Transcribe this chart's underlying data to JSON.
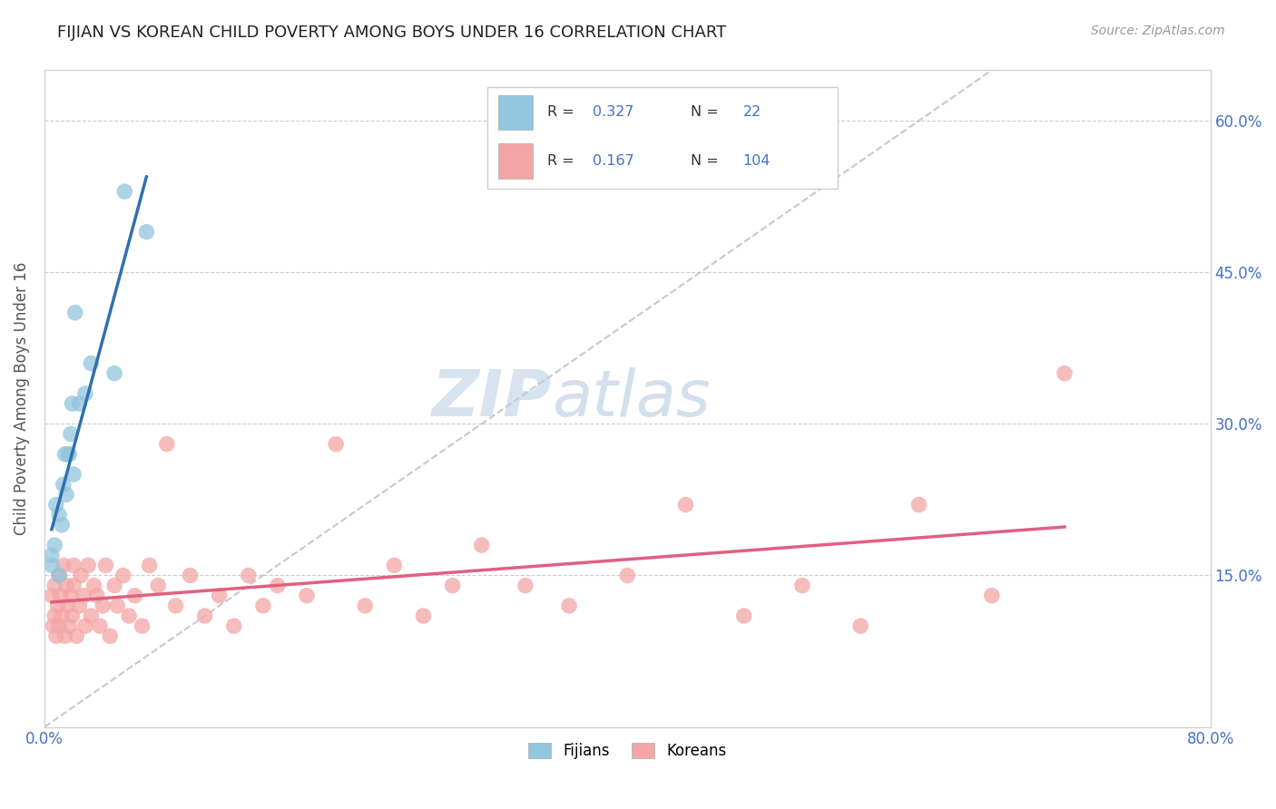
{
  "title": "FIJIAN VS KOREAN CHILD POVERTY AMONG BOYS UNDER 16 CORRELATION CHART",
  "source_text": "Source: ZipAtlas.com",
  "ylabel": "Child Poverty Among Boys Under 16",
  "xlim": [
    0.0,
    0.8
  ],
  "ylim": [
    0.0,
    0.65
  ],
  "ytick_positions": [
    0.15,
    0.3,
    0.45,
    0.6
  ],
  "ytick_labels": [
    "15.0%",
    "30.0%",
    "45.0%",
    "60.0%"
  ],
  "fijian_color": "#92c5de",
  "korean_color": "#f4a6a6",
  "fijian_line_color": "#3070b0",
  "korean_line_color": "#e06080",
  "watermark_zip": "ZIP",
  "watermark_atlas": "atlas",
  "fijians_x": [
    0.005,
    0.005,
    0.007,
    0.008,
    0.01,
    0.01,
    0.012,
    0.013,
    0.014,
    0.015,
    0.016,
    0.017,
    0.018,
    0.019,
    0.02,
    0.021,
    0.024,
    0.028,
    0.032,
    0.048,
    0.055,
    0.07
  ],
  "fijians_y": [
    0.16,
    0.17,
    0.18,
    0.22,
    0.15,
    0.21,
    0.2,
    0.24,
    0.27,
    0.23,
    0.27,
    0.27,
    0.29,
    0.32,
    0.25,
    0.41,
    0.32,
    0.33,
    0.36,
    0.35,
    0.53,
    0.49
  ],
  "koreans_x": [
    0.005,
    0.006,
    0.007,
    0.007,
    0.008,
    0.009,
    0.01,
    0.01,
    0.011,
    0.012,
    0.013,
    0.014,
    0.015,
    0.016,
    0.017,
    0.018,
    0.019,
    0.02,
    0.02,
    0.022,
    0.024,
    0.025,
    0.027,
    0.028,
    0.03,
    0.032,
    0.034,
    0.036,
    0.038,
    0.04,
    0.042,
    0.045,
    0.048,
    0.05,
    0.054,
    0.058,
    0.062,
    0.067,
    0.072,
    0.078,
    0.084,
    0.09,
    0.1,
    0.11,
    0.12,
    0.13,
    0.14,
    0.15,
    0.16,
    0.18,
    0.2,
    0.22,
    0.24,
    0.26,
    0.28,
    0.3,
    0.33,
    0.36,
    0.4,
    0.44,
    0.48,
    0.52,
    0.56,
    0.6,
    0.65,
    0.7
  ],
  "koreans_y": [
    0.13,
    0.1,
    0.11,
    0.14,
    0.09,
    0.12,
    0.1,
    0.15,
    0.13,
    0.11,
    0.16,
    0.09,
    0.14,
    0.12,
    0.1,
    0.13,
    0.11,
    0.14,
    0.16,
    0.09,
    0.12,
    0.15,
    0.13,
    0.1,
    0.16,
    0.11,
    0.14,
    0.13,
    0.1,
    0.12,
    0.16,
    0.09,
    0.14,
    0.12,
    0.15,
    0.11,
    0.13,
    0.1,
    0.16,
    0.14,
    0.28,
    0.12,
    0.15,
    0.11,
    0.13,
    0.1,
    0.15,
    0.12,
    0.14,
    0.13,
    0.28,
    0.12,
    0.16,
    0.11,
    0.14,
    0.18,
    0.14,
    0.12,
    0.15,
    0.22,
    0.11,
    0.14,
    0.1,
    0.22,
    0.13,
    0.35
  ],
  "background_color": "#ffffff",
  "grid_color": "#cccccc"
}
